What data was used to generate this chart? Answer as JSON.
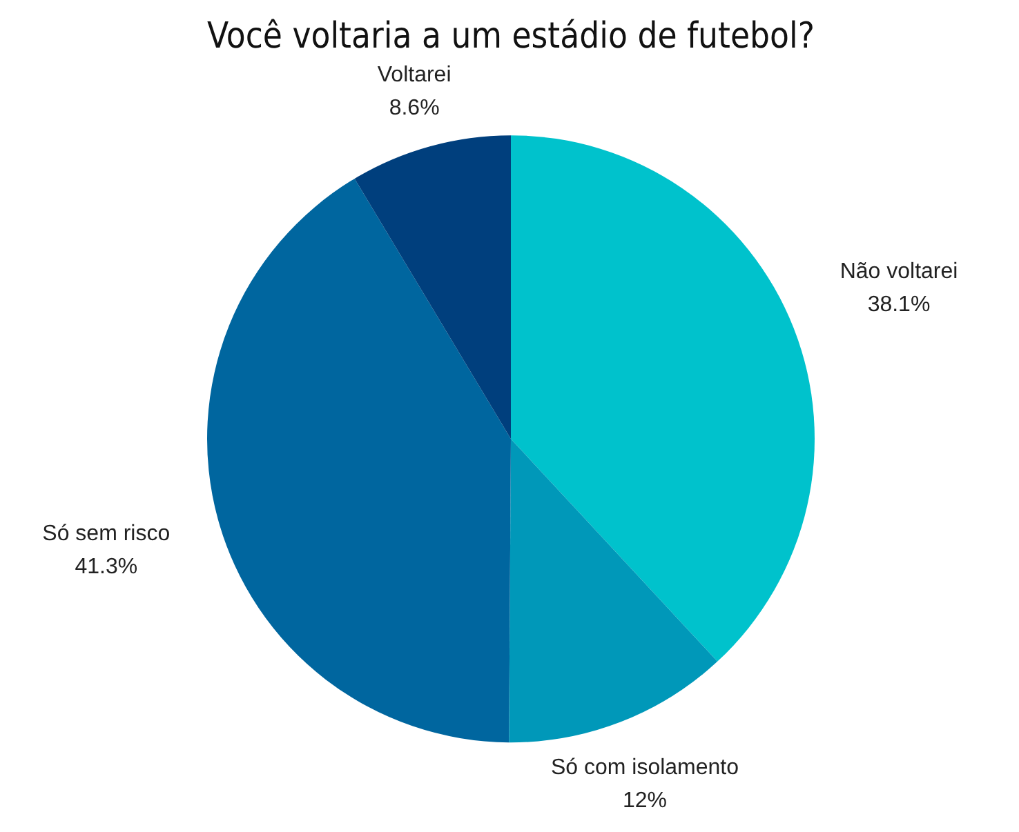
{
  "chart_data": {
    "type": "pie",
    "title": "Você voltaria a um estádio de futebol?",
    "categories": [
      "Não voltarei",
      "Só com isolamento",
      "Só sem risco",
      "Voltarei"
    ],
    "values": [
      38.1,
      12,
      41.3,
      8.6
    ],
    "colors": [
      "#00c2cc",
      "#0098b9",
      "#00669f",
      "#003f7d"
    ],
    "value_labels": [
      "38.1%",
      "12%",
      "41.3%",
      "8.6%"
    ],
    "legend": false
  }
}
